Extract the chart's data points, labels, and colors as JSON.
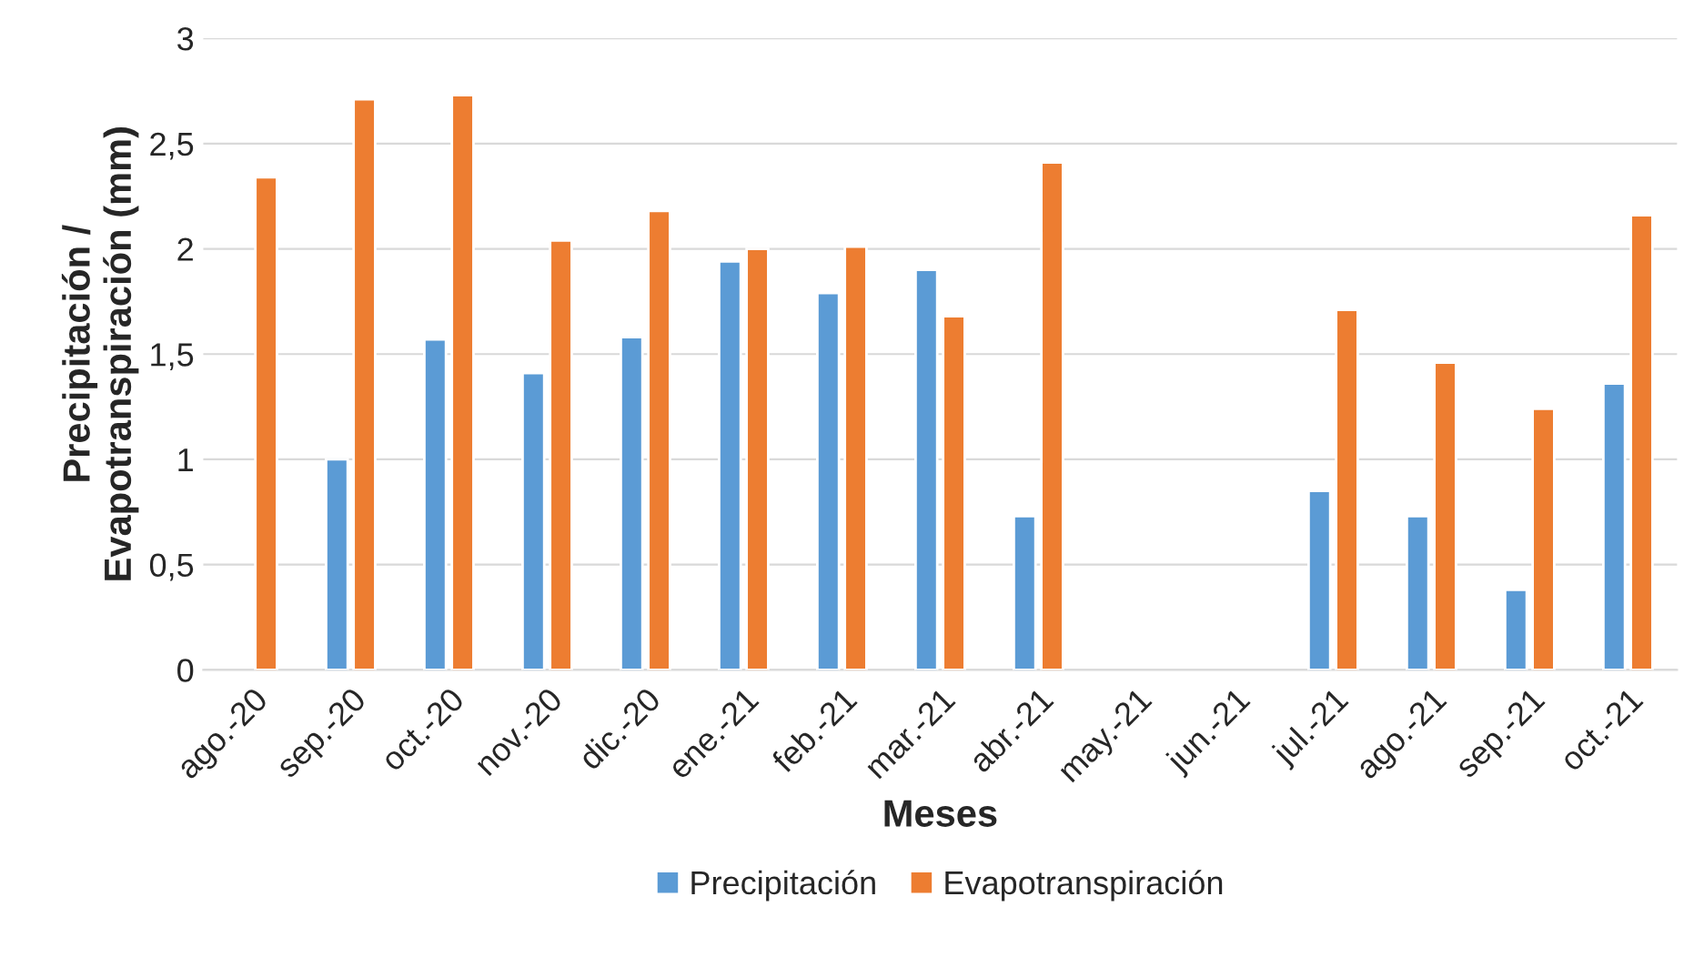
{
  "chart_data": {
    "type": "bar",
    "xlabel": "Meses",
    "ylabel": "Precipitación /\nEvapotranspiración (mm)",
    "categories": [
      "ago.-20",
      "sep.-20",
      "oct.-20",
      "nov.-20",
      "dic.-20",
      "ene.-21",
      "feb.-21",
      "mar.-21",
      "abr.-21",
      "may.-21",
      "jun.-21",
      "jul.-21",
      "ago.-21",
      "sep.-21",
      "oct.-21"
    ],
    "series": [
      {
        "name": "Precipitación",
        "color": "#5b9bd5",
        "values": [
          null,
          1.0,
          1.57,
          1.41,
          1.58,
          1.94,
          1.79,
          1.9,
          0.73,
          null,
          null,
          0.85,
          0.73,
          0.38,
          1.36
        ]
      },
      {
        "name": "Evapotranspiración",
        "color": "#ed7d31",
        "values": [
          2.34,
          2.71,
          2.73,
          2.04,
          2.18,
          2.0,
          2.01,
          1.68,
          2.41,
          null,
          null,
          1.71,
          1.46,
          1.24,
          2.16
        ]
      }
    ],
    "ylim": [
      0,
      3
    ],
    "yticks": [
      0,
      {
        "value": 0.5,
        "label": "0,5"
      },
      1,
      {
        "value": 1.5,
        "label": "1,5"
      },
      2,
      {
        "value": 2.5,
        "label": "2,5"
      },
      3
    ],
    "grid": "y",
    "legend": "bottom"
  }
}
